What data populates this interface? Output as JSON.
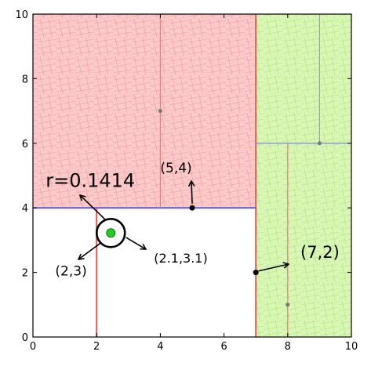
{
  "chart_data": {
    "type": "scatter",
    "xlim": [
      0,
      10
    ],
    "ylim": [
      0,
      10
    ],
    "x_ticks": [
      "0",
      "2",
      "4",
      "6",
      "8",
      "10"
    ],
    "y_ticks": [
      "0",
      "2",
      "4",
      "6",
      "8",
      "10"
    ],
    "grid": false,
    "regions": [
      {
        "fill": "red",
        "x": [
          0,
          7
        ],
        "y": [
          4,
          10
        ]
      },
      {
        "fill": "green",
        "x": [
          7,
          10
        ],
        "y": [
          0,
          10
        ]
      }
    ],
    "splits": [
      {
        "orient": "vertical",
        "at": 7,
        "from": 0,
        "to": 10,
        "color": "#e05a5a"
      },
      {
        "orient": "horizontal",
        "at": 4,
        "from": 0,
        "to": 7,
        "color": "#5a5ae0"
      },
      {
        "orient": "vertical",
        "at": 2,
        "from": 0,
        "to": 4,
        "color": "#e05a5a"
      },
      {
        "orient": "vertical",
        "at": 4,
        "from": 4,
        "to": 10,
        "color": "#e08080"
      },
      {
        "orient": "horizontal",
        "at": 6,
        "from": 7,
        "to": 10,
        "color": "#7a7ae0"
      },
      {
        "orient": "vertical",
        "at": 8,
        "from": 0,
        "to": 6,
        "color": "#e08080"
      },
      {
        "orient": "vertical",
        "at": 9,
        "from": 6,
        "to": 10,
        "color": "#a0a0a0"
      }
    ],
    "points": [
      {
        "x": 5,
        "y": 4,
        "color": "#000000"
      },
      {
        "x": 7,
        "y": 2,
        "color": "#000000"
      },
      {
        "x": 4,
        "y": 7,
        "color": "#777777"
      },
      {
        "x": 8,
        "y": 1,
        "color": "#777777"
      },
      {
        "x": 9,
        "y": 6,
        "color": "#777777"
      }
    ],
    "query": {
      "x": 2.1,
      "y": 3.1,
      "radius": 0.1414
    },
    "annotations": [
      {
        "text": "r=0.1414",
        "x": 0.4,
        "y": 4.65
      },
      {
        "text": "(5,4)",
        "x": 4.0,
        "y": 5.1
      },
      {
        "text": "(2,3)",
        "x": 0.7,
        "y": 1.9
      },
      {
        "text": "(2.1,3.1)",
        "x": 3.8,
        "y": 2.3
      },
      {
        "text": "(7,2)",
        "x": 8.4,
        "y": 2.45
      }
    ]
  }
}
